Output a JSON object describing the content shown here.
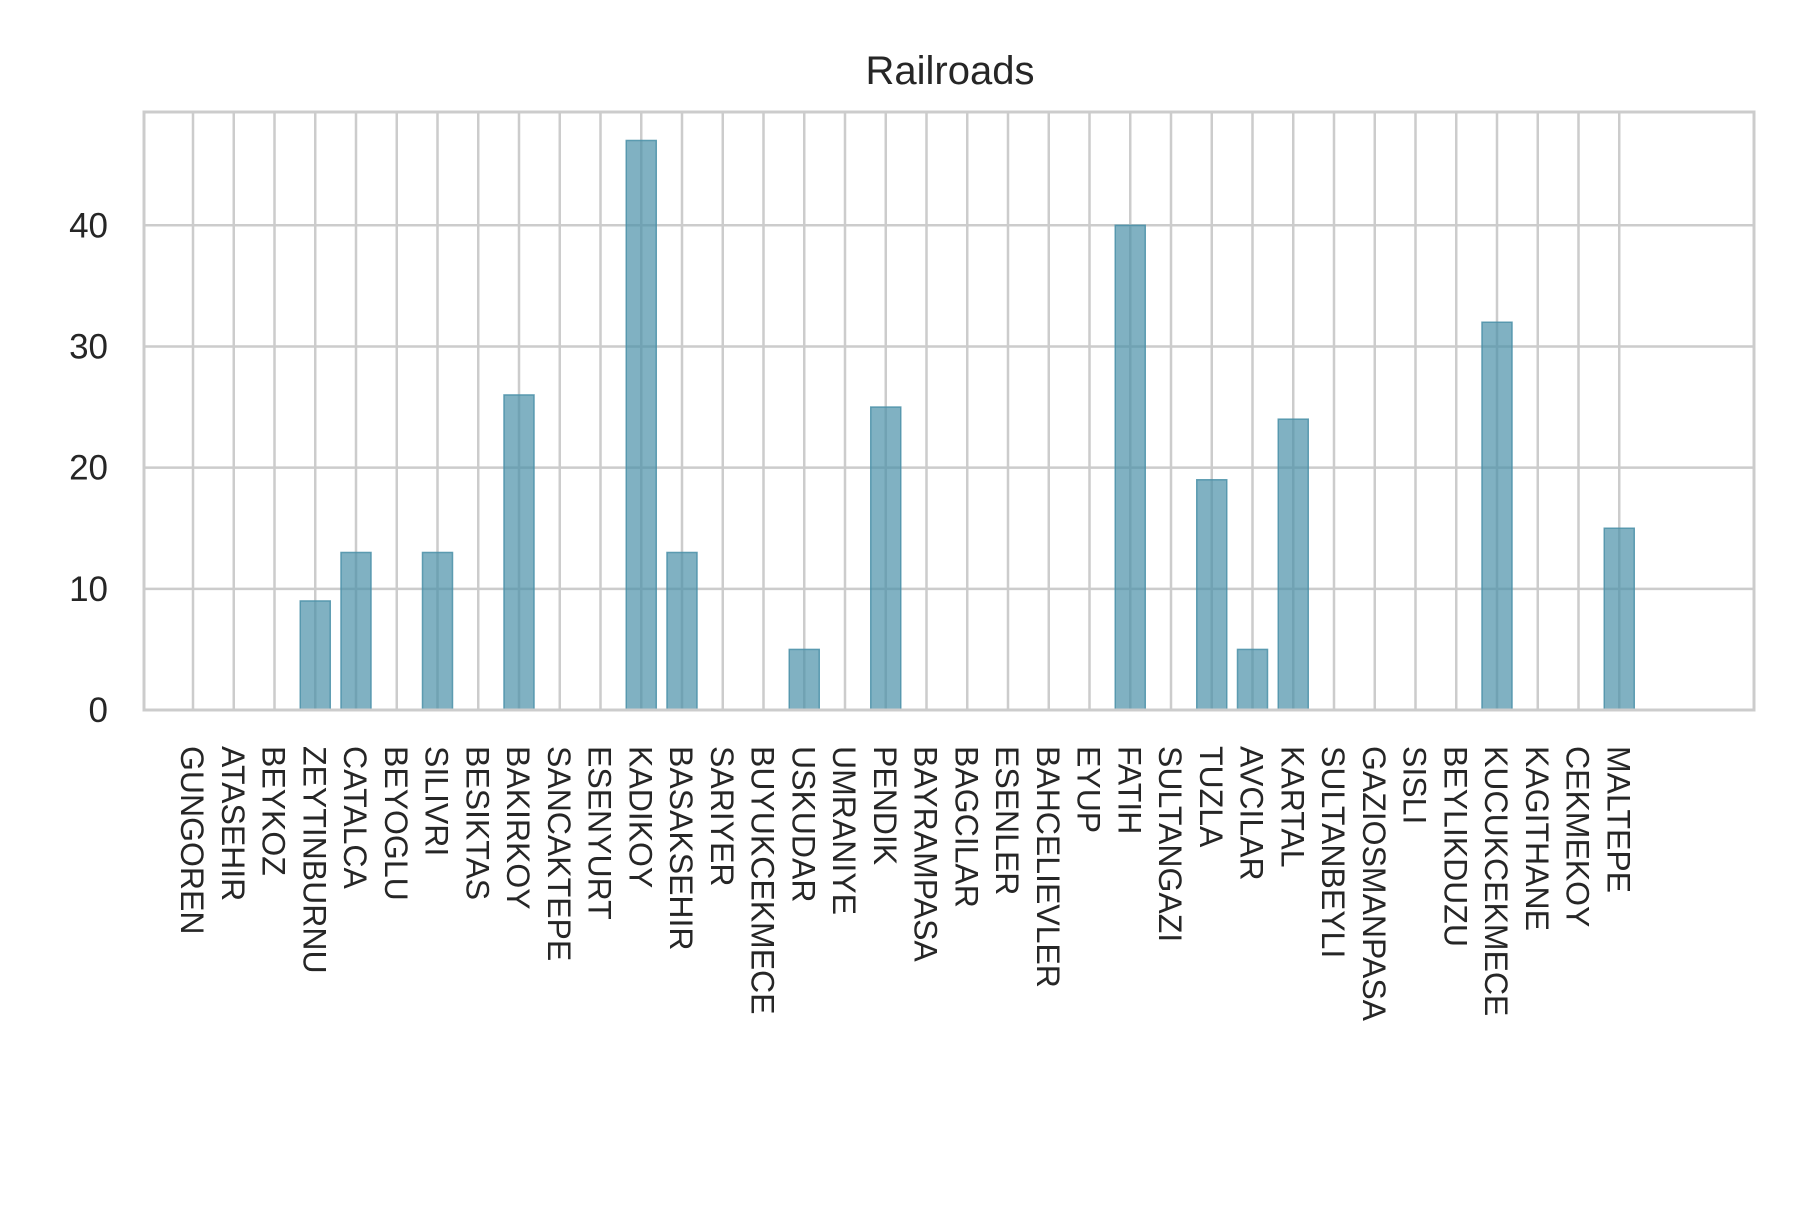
{
  "chart_data": {
    "type": "bar",
    "title": "Railroads",
    "xlabel": "",
    "ylabel": "",
    "ylim": [
      0,
      49.35
    ],
    "yticks": [
      0,
      10,
      20,
      30,
      40
    ],
    "grid": true,
    "legend": "none",
    "bar_color": "#4a90a8",
    "grid_color": "#cccccc",
    "categories": [
      "GUNGOREN",
      "ATASEHIR",
      "BEYKOZ",
      "ZEYTINBURNU",
      "CATALCA",
      "BEYOGLU",
      "SILIVRI",
      "BESIKTAS",
      "BAKIRKOY",
      "SANCAKTEPE",
      "ESENYURT",
      "KADIKOY",
      "BASAKSEHIR",
      "SARIYER",
      "BUYUKCEKMECE",
      "USKUDAR",
      "UMRANIYE",
      "PENDIK",
      "BAYRAMPASA",
      "BAGCILAR",
      "ESENLER",
      "BAHCELIEVLER",
      "EYUP",
      "FATIH",
      "SULTANGAZI",
      "TUZLA",
      "AVCILAR",
      "KARTAL",
      "SULTANBEYLI",
      "GAZIOSMANPASA",
      "SISLI",
      "BEYLIKDUZU",
      "KUCUKCEKMECE",
      "KAGITHANE",
      "CEKMEKOY",
      "MALTEPE"
    ],
    "values": [
      0,
      0,
      0,
      9,
      13,
      0,
      13,
      0,
      26,
      0,
      0,
      47,
      13,
      0,
      0,
      5,
      0,
      25,
      0,
      0,
      0,
      0,
      0,
      40,
      0,
      19,
      5,
      24,
      0,
      0,
      0,
      0,
      32,
      0,
      0,
      15
    ]
  }
}
